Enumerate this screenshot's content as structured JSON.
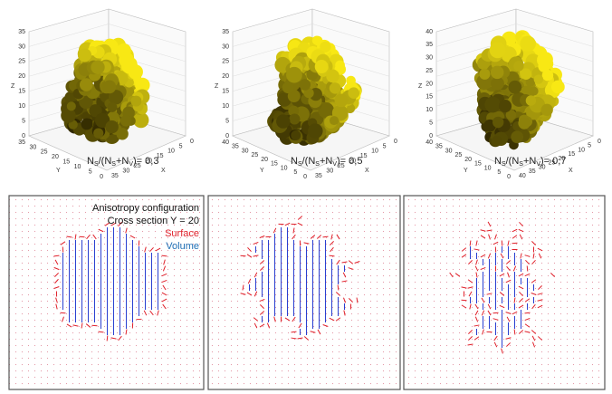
{
  "panels": [
    {
      "label": [
        "N",
        "S",
        "/(N",
        "S",
        "+N",
        "V",
        ")= 0,3"
      ],
      "z_label": "Z",
      "y_label": "Y",
      "x_label": "X",
      "z_ticks": [
        0,
        5,
        10,
        15,
        20,
        25,
        30,
        35
      ],
      "y_ticks": [
        0,
        5,
        10,
        15,
        20,
        25,
        30,
        35
      ],
      "x_ticks": [
        0,
        5,
        10,
        15,
        20,
        25,
        30,
        35
      ]
    },
    {
      "label": [
        "N",
        "S",
        "/(N",
        "S",
        "+N",
        "V",
        ")= 0,5"
      ],
      "z_label": "Z",
      "y_label": "Y",
      "x_label": "X",
      "z_ticks": [
        0,
        5,
        10,
        15,
        20,
        25,
        30,
        35
      ],
      "y_ticks": [
        0,
        5,
        10,
        15,
        20,
        25,
        30,
        35,
        40
      ],
      "x_ticks": [
        0,
        5,
        10,
        15,
        20,
        25,
        30,
        35
      ]
    },
    {
      "label": [
        "N",
        "S",
        "/(N",
        "S",
        "+N",
        "V",
        ")= 0,7"
      ],
      "z_label": "Z",
      "y_label": "Y",
      "x_label": "X",
      "z_ticks": [
        0,
        5,
        10,
        15,
        20,
        25,
        30,
        35,
        40
      ],
      "y_ticks": [
        0,
        5,
        10,
        15,
        20,
        25,
        30,
        35,
        40
      ],
      "x_ticks": [
        0,
        5,
        10,
        15,
        20,
        25,
        30,
        35,
        40
      ]
    }
  ],
  "cross_section": {
    "title": "Anisotropy configuration",
    "subtitle": "Cross section Y = 20",
    "legend": [
      "Surface",
      "Volume"
    ]
  }
}
